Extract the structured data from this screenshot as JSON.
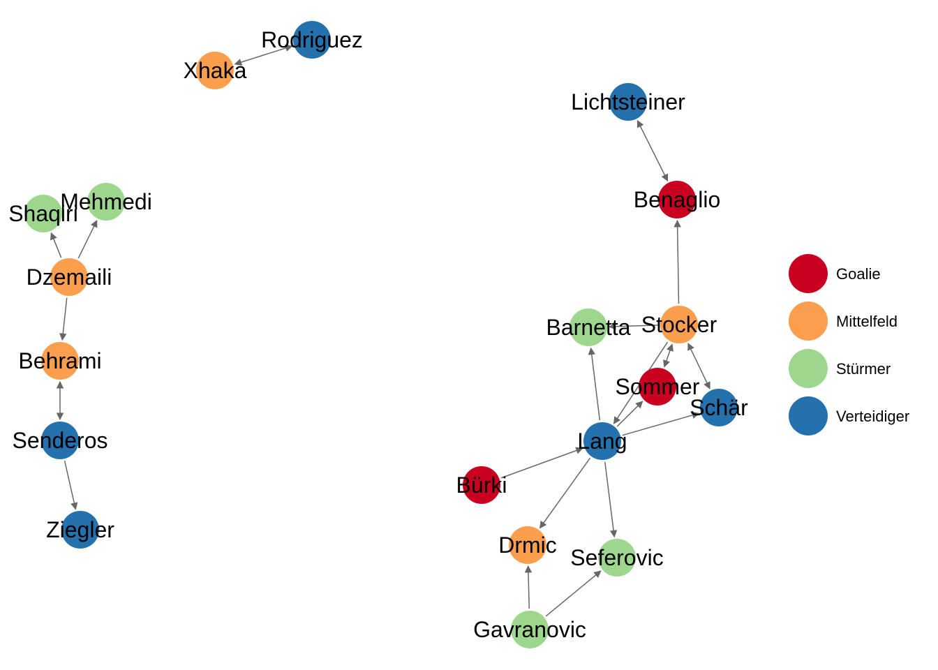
{
  "groups": [
    {
      "key": "goalie",
      "label": "Goalie",
      "color": "#ca0020"
    },
    {
      "key": "mittelfeld",
      "label": "Mittelfeld",
      "color": "#fb9f4f"
    },
    {
      "key": "stuermer",
      "label": "Stürmer",
      "color": "#9dd78e"
    },
    {
      "key": "verteidiger",
      "label": "Verteidiger",
      "color": "#2471ae"
    }
  ],
  "nodes": [
    {
      "id": "rodriguez",
      "label": "Rodriguez",
      "group": "verteidiger"
    },
    {
      "id": "xhaka",
      "label": "Xhaka",
      "group": "mittelfeld"
    },
    {
      "id": "lichtsteiner",
      "label": "Lichtsteiner",
      "group": "verteidiger"
    },
    {
      "id": "benaglio",
      "label": "Benaglio",
      "group": "goalie"
    },
    {
      "id": "shaqiri",
      "label": "Shaqiri",
      "group": "stuermer"
    },
    {
      "id": "mehmedi",
      "label": "Mehmedi",
      "group": "stuermer"
    },
    {
      "id": "dzemaili",
      "label": "Dzemaili",
      "group": "mittelfeld"
    },
    {
      "id": "behrami",
      "label": "Behrami",
      "group": "mittelfeld"
    },
    {
      "id": "senderos",
      "label": "Senderos",
      "group": "verteidiger"
    },
    {
      "id": "ziegler",
      "label": "Ziegler",
      "group": "verteidiger"
    },
    {
      "id": "barnetta",
      "label": "Barnetta",
      "group": "stuermer"
    },
    {
      "id": "stocker",
      "label": "Stocker",
      "group": "mittelfeld"
    },
    {
      "id": "sommer",
      "label": "Sommer",
      "group": "goalie"
    },
    {
      "id": "schaer",
      "label": "Schär",
      "group": "verteidiger"
    },
    {
      "id": "lang",
      "label": "Lang",
      "group": "verteidiger"
    },
    {
      "id": "buerki",
      "label": "Bürki",
      "group": "goalie"
    },
    {
      "id": "drmic",
      "label": "Drmic",
      "group": "mittelfeld"
    },
    {
      "id": "seferovic",
      "label": "Seferovic",
      "group": "stuermer"
    },
    {
      "id": "gavranovic",
      "label": "Gavranovic",
      "group": "stuermer"
    }
  ],
  "edges": [
    {
      "from": "xhaka",
      "to": "rodriguez",
      "bidirectional": true
    },
    {
      "from": "lichtsteiner",
      "to": "benaglio",
      "bidirectional": true
    },
    {
      "from": "dzemaili",
      "to": "shaqiri",
      "bidirectional": false
    },
    {
      "from": "dzemaili",
      "to": "mehmedi",
      "bidirectional": false
    },
    {
      "from": "dzemaili",
      "to": "behrami",
      "bidirectional": false
    },
    {
      "from": "behrami",
      "to": "senderos",
      "bidirectional": true
    },
    {
      "from": "senderos",
      "to": "ziegler",
      "bidirectional": false
    },
    {
      "from": "stocker",
      "to": "benaglio",
      "bidirectional": false
    },
    {
      "from": "stocker",
      "to": "barnetta",
      "bidirectional": false
    },
    {
      "from": "stocker",
      "to": "sommer",
      "bidirectional": true
    },
    {
      "from": "stocker",
      "to": "schaer",
      "bidirectional": true
    },
    {
      "from": "stocker",
      "to": "lang",
      "bidirectional": false
    },
    {
      "from": "lang",
      "to": "sommer",
      "bidirectional": false
    },
    {
      "from": "lang",
      "to": "barnetta",
      "bidirectional": false
    },
    {
      "from": "lang",
      "to": "schaer",
      "bidirectional": false
    },
    {
      "from": "lang",
      "to": "drmic",
      "bidirectional": false
    },
    {
      "from": "lang",
      "to": "seferovic",
      "bidirectional": false
    },
    {
      "from": "buerki",
      "to": "lang",
      "bidirectional": false
    },
    {
      "from": "gavranovic",
      "to": "drmic",
      "bidirectional": false
    },
    {
      "from": "gavranovic",
      "to": "seferovic",
      "bidirectional": false
    }
  ]
}
